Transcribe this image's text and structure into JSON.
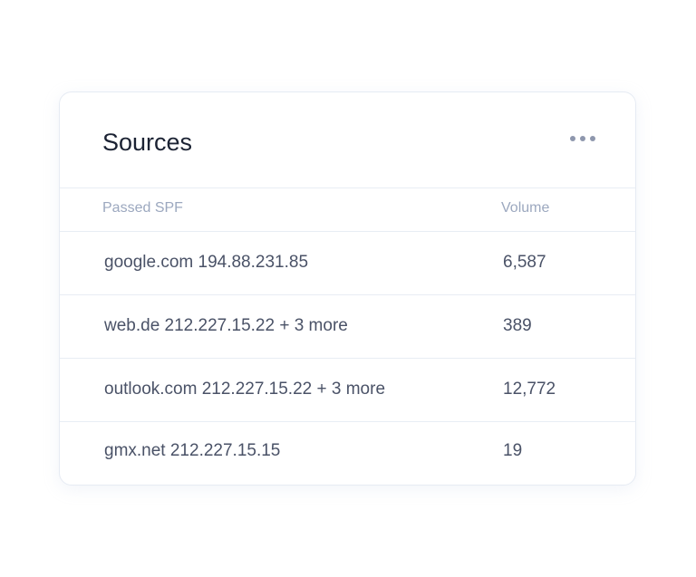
{
  "card": {
    "title": "Sources",
    "menu_icon": "more-horizontal-icon",
    "columns": [
      "Passed SPF",
      "Volume"
    ],
    "rows": [
      {
        "source": "google.com 194.88.231.85",
        "volume": "6,587"
      },
      {
        "source": "web.de 212.227.15.22 + 3 more",
        "volume": "389"
      },
      {
        "source": "outlook.com 212.227.15.22 + 3 more",
        "volume": "12,772"
      },
      {
        "source": "gmx.net 212.227.15.15",
        "volume": "19"
      }
    ]
  }
}
